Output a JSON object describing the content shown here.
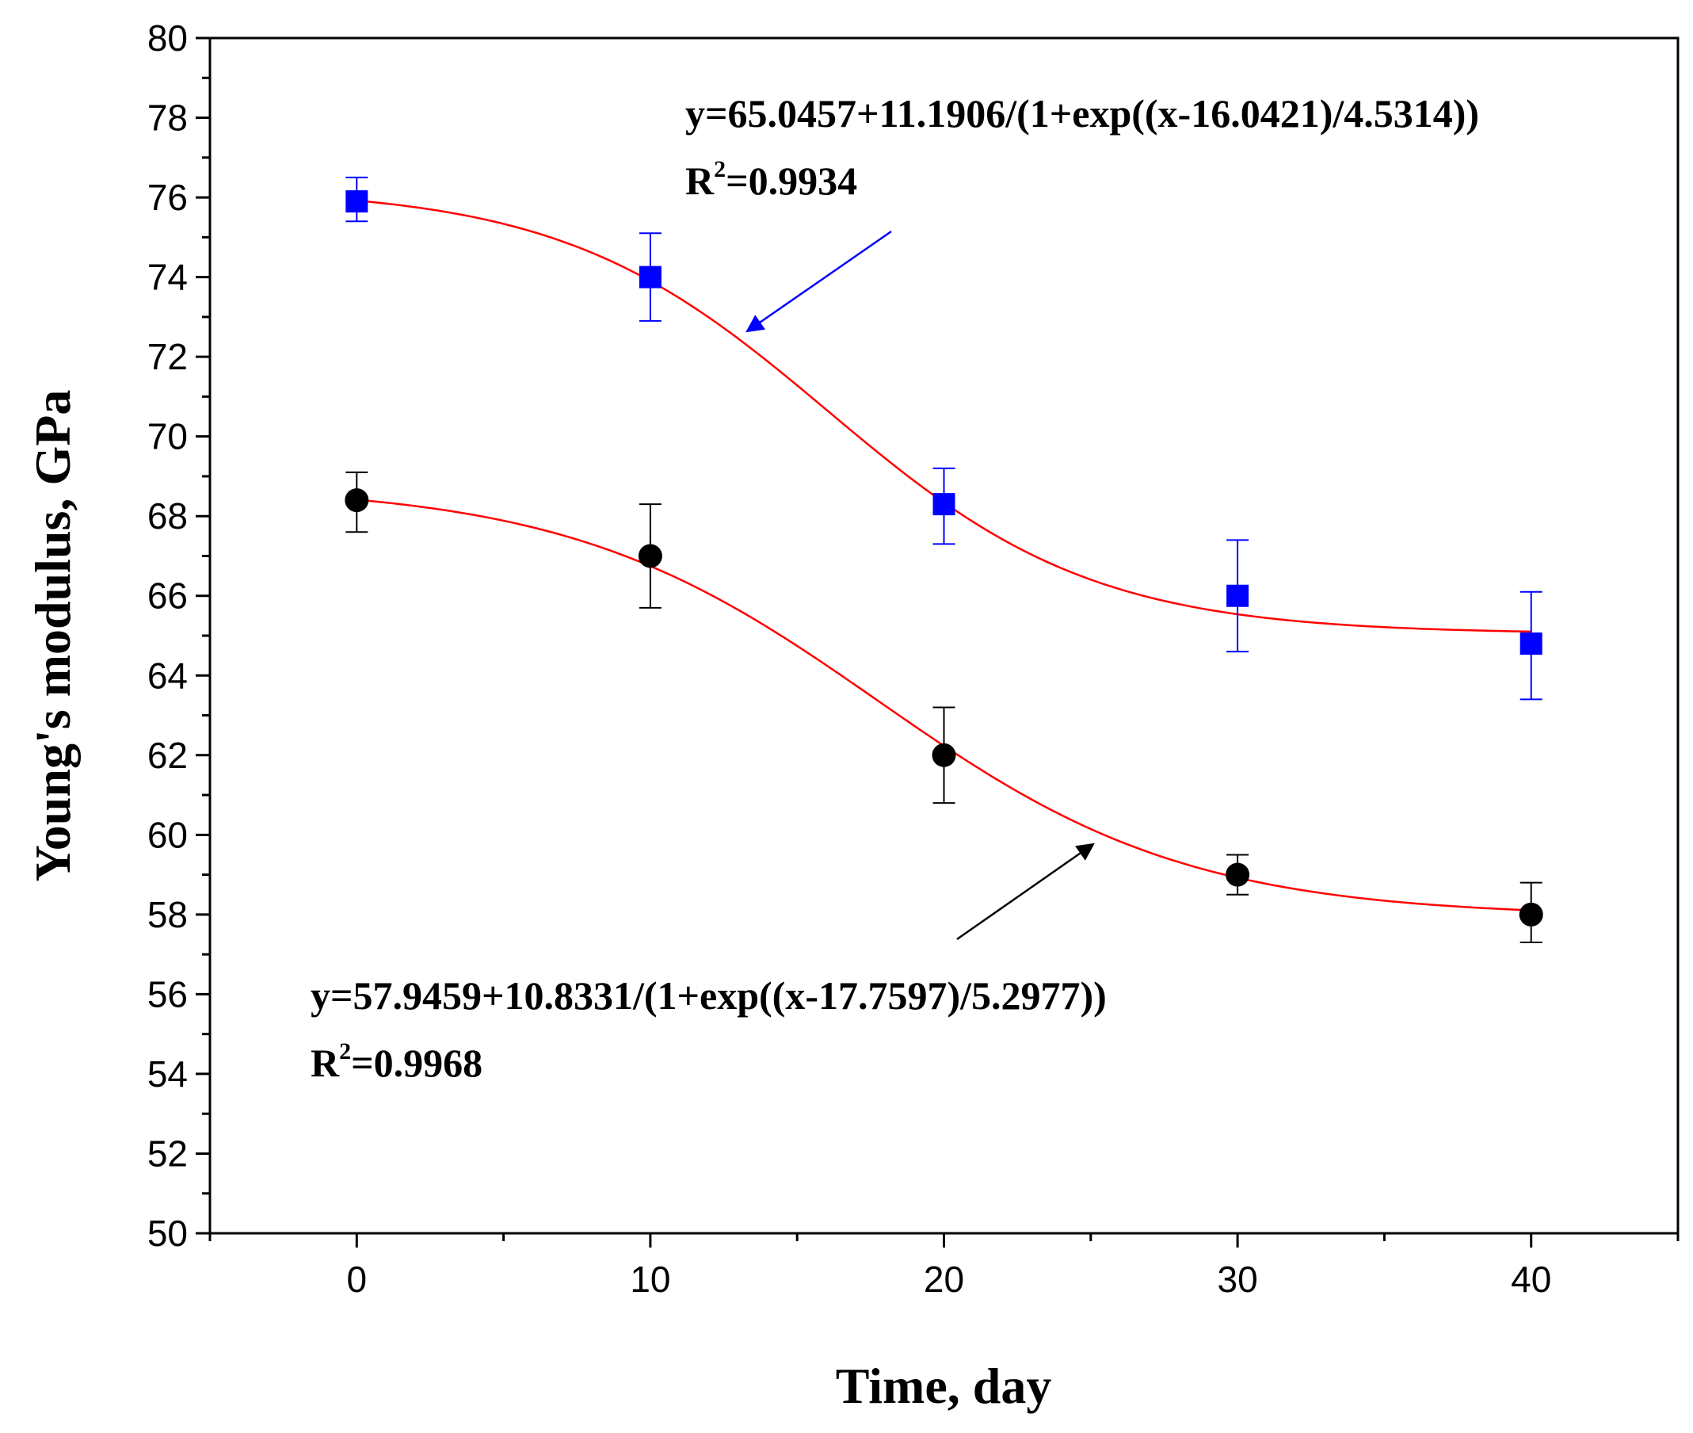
{
  "chart_data": {
    "type": "scatter",
    "title": "",
    "xlabel": "Time, day",
    "ylabel": "Young's modulus, GPa",
    "xlim": [
      -5,
      45
    ],
    "ylim": [
      50,
      80
    ],
    "xticks": [
      0,
      10,
      20,
      30,
      40
    ],
    "xtick_labels": [
      "0",
      "10",
      "20",
      "30",
      "40"
    ],
    "x_minor_ticks": [
      -5,
      5,
      15,
      25,
      35,
      45
    ],
    "yticks": [
      50,
      52,
      54,
      56,
      58,
      60,
      62,
      64,
      66,
      68,
      70,
      72,
      74,
      76,
      78,
      80
    ],
    "ytick_labels": [
      "50",
      "52",
      "54",
      "56",
      "58",
      "60",
      "62",
      "64",
      "66",
      "68",
      "70",
      "72",
      "74",
      "76",
      "78",
      "80"
    ],
    "grid": false,
    "series": [
      {
        "name": "blue-squares",
        "marker": "square",
        "color": "#0000ff",
        "x": [
          0,
          10,
          20,
          30,
          40
        ],
        "y": [
          75.9,
          74.0,
          68.3,
          66.0,
          64.8
        ],
        "err_low": [
          75.4,
          72.9,
          67.3,
          64.6,
          63.4
        ],
        "err_high": [
          76.5,
          75.1,
          69.2,
          67.4,
          66.1
        ],
        "fit": {
          "a": 65.0457,
          "b": 11.1906,
          "c": 16.0421,
          "d": 4.5314
        },
        "equation": "y=65.0457+11.1906/(1+exp((x-16.0421)/4.5314))",
        "r2_prefix": "R",
        "r2_sup": "2",
        "r2_value": "=0.9934",
        "arrow_color": "#0000ff"
      },
      {
        "name": "black-circles",
        "marker": "circle",
        "color": "#000000",
        "x": [
          0,
          10,
          20,
          30,
          40
        ],
        "y": [
          68.4,
          67.0,
          62.0,
          59.0,
          58.0
        ],
        "err_low": [
          67.6,
          65.7,
          60.8,
          58.5,
          57.3
        ],
        "err_high": [
          69.1,
          68.3,
          63.2,
          59.5,
          58.8
        ],
        "fit": {
          "a": 57.9459,
          "b": 10.8331,
          "c": 17.7597,
          "d": 5.2977
        },
        "equation": "y=57.9459+10.8331/(1+exp((x-17.7597)/5.2977))",
        "r2_prefix": "R",
        "r2_sup": "2",
        "r2_value": "=0.9968",
        "arrow_color": "#000000"
      }
    ],
    "fit_color": "#ff0000"
  }
}
